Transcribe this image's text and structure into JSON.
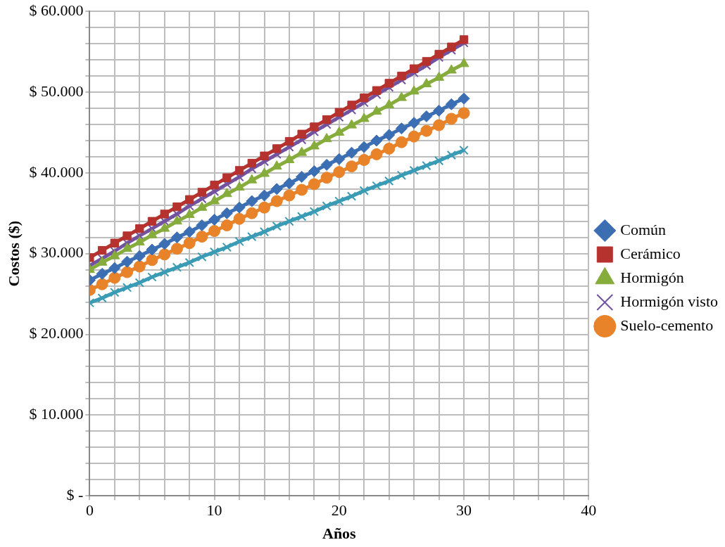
{
  "chart_data": {
    "type": "line",
    "xlabel": "Años",
    "ylabel": "Costos ($)",
    "x": [
      0,
      1,
      2,
      3,
      4,
      5,
      6,
      7,
      8,
      9,
      10,
      11,
      12,
      13,
      14,
      15,
      16,
      17,
      18,
      19,
      20,
      21,
      22,
      23,
      24,
      25,
      26,
      27,
      28,
      29,
      30
    ],
    "xlim": [
      0,
      40
    ],
    "xticks": [
      0,
      {
        "value": 2,
        "label": null
      },
      {
        "value": 4,
        "label": null
      },
      {
        "value": 6,
        "label": null
      },
      {
        "value": 8,
        "label": null
      },
      10,
      {
        "value": 12,
        "label": null
      },
      {
        "value": 14,
        "label": null
      },
      {
        "value": 16,
        "label": null
      },
      {
        "value": 18,
        "label": null
      },
      20,
      {
        "value": 22,
        "label": null
      },
      {
        "value": 24,
        "label": null
      },
      {
        "value": 26,
        "label": null
      },
      {
        "value": 28,
        "label": null
      },
      30,
      {
        "value": 32,
        "label": null
      },
      {
        "value": 34,
        "label": null
      },
      {
        "value": 36,
        "label": null
      },
      {
        "value": 38,
        "label": null
      },
      40
    ],
    "ylim": [
      0,
      60000
    ],
    "yticks": [
      {
        "value": 0,
        "label": "$ -"
      },
      {
        "value": 2000,
        "label": null
      },
      {
        "value": 4000,
        "label": null
      },
      {
        "value": 6000,
        "label": null
      },
      {
        "value": 8000,
        "label": null
      },
      {
        "value": 10000,
        "label": "$ 10.000"
      },
      {
        "value": 12000,
        "label": null
      },
      {
        "value": 14000,
        "label": null
      },
      {
        "value": 16000,
        "label": null
      },
      {
        "value": 18000,
        "label": null
      },
      {
        "value": 20000,
        "label": "$ 20.000"
      },
      {
        "value": 22000,
        "label": null
      },
      {
        "value": 24000,
        "label": null
      },
      {
        "value": 26000,
        "label": null
      },
      {
        "value": 28000,
        "label": null
      },
      {
        "value": 30000,
        "label": "$ 30.000"
      },
      {
        "value": 32000,
        "label": null
      },
      {
        "value": 34000,
        "label": null
      },
      {
        "value": 36000,
        "label": null
      },
      {
        "value": 38000,
        "label": null
      },
      {
        "value": 40000,
        "label": "$ 40.000"
      },
      {
        "value": 42000,
        "label": null
      },
      {
        "value": 44000,
        "label": null
      },
      {
        "value": 46000,
        "label": null
      },
      {
        "value": 48000,
        "label": null
      },
      {
        "value": 50000,
        "label": "$ 50.000"
      },
      {
        "value": 52000,
        "label": null
      },
      {
        "value": 54000,
        "label": null
      },
      {
        "value": 56000,
        "label": null
      },
      {
        "value": 58000,
        "label": null
      },
      {
        "value": 60000,
        "label": "$ 60.000"
      }
    ],
    "grid": true,
    "legend": "right",
    "line_style": "solid",
    "series": [
      {
        "name": "Común",
        "color": "#3c6eb4",
        "marker": "diamond",
        "values": [
          26700,
          27500,
          28200,
          29000,
          29700,
          30500,
          31200,
          32000,
          32700,
          33500,
          34200,
          35000,
          35700,
          36500,
          37200,
          38000,
          38700,
          39500,
          40200,
          41000,
          41700,
          42500,
          43200,
          44000,
          44700,
          45500,
          46200,
          47000,
          47700,
          48500,
          49200
        ]
      },
      {
        "name": "Cerámico",
        "color": "#b5322e",
        "marker": "square",
        "values": [
          29500,
          30400,
          31300,
          32200,
          33100,
          34000,
          34900,
          35800,
          36700,
          37600,
          38500,
          39400,
          40300,
          41200,
          42100,
          43000,
          43900,
          44800,
          45700,
          46600,
          47500,
          48400,
          49300,
          50200,
          51100,
          52000,
          52900,
          53800,
          54700,
          55600,
          56500
        ]
      },
      {
        "name": "Hormigón",
        "color": "#86ac3c",
        "marker": "triangle",
        "values": [
          28000,
          28900,
          29700,
          30600,
          31400,
          32300,
          33100,
          34000,
          34800,
          35700,
          36500,
          37400,
          38200,
          39100,
          39900,
          40800,
          41600,
          42500,
          43300,
          44200,
          45000,
          45900,
          46700,
          47600,
          48400,
          49300,
          50100,
          51000,
          51800,
          52700,
          53500
        ]
      },
      {
        "name": "Hormigón visto",
        "color": "#7352a0",
        "marker": "cross",
        "values": [
          28500,
          29400,
          30300,
          31300,
          32200,
          33100,
          34000,
          34900,
          35900,
          36800,
          37700,
          38600,
          39500,
          40500,
          41400,
          42300,
          43200,
          44100,
          45100,
          46000,
          46900,
          47800,
          48700,
          49700,
          50600,
          51500,
          52400,
          53300,
          54300,
          55200,
          56100
        ]
      },
      {
        "color": "#3a9bb5",
        "marker": "cross",
        "values": [
          23900,
          24500,
          25200,
          25800,
          26400,
          27100,
          27700,
          28300,
          28900,
          29600,
          30200,
          30800,
          31500,
          32100,
          32700,
          33400,
          34000,
          34600,
          35200,
          35900,
          36500,
          37100,
          37800,
          38400,
          39000,
          39700,
          40300,
          40900,
          41500,
          42200,
          42800
        ]
      },
      {
        "name": "Suelo-cemento",
        "color": "#e8832a",
        "marker": "circle",
        "values": [
          25500,
          26200,
          27000,
          27700,
          28400,
          29200,
          29900,
          30600,
          31300,
          32100,
          32800,
          33500,
          34300,
          35000,
          35700,
          36500,
          37200,
          37900,
          38600,
          39400,
          40100,
          40800,
          41600,
          42300,
          43000,
          43800,
          44500,
          45200,
          45900,
          46700,
          47400
        ]
      }
    ]
  }
}
